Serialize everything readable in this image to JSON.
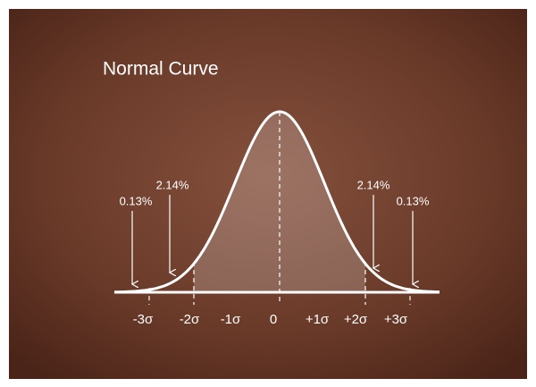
{
  "title": "Normal Curve",
  "axis_labels": [
    "-3σ",
    "-2σ",
    "-1σ",
    "0",
    "+1σ",
    "+2σ",
    "+3σ"
  ],
  "annotations": [
    "0.13%",
    "2.14%",
    "2.14%",
    "0.13%"
  ]
}
